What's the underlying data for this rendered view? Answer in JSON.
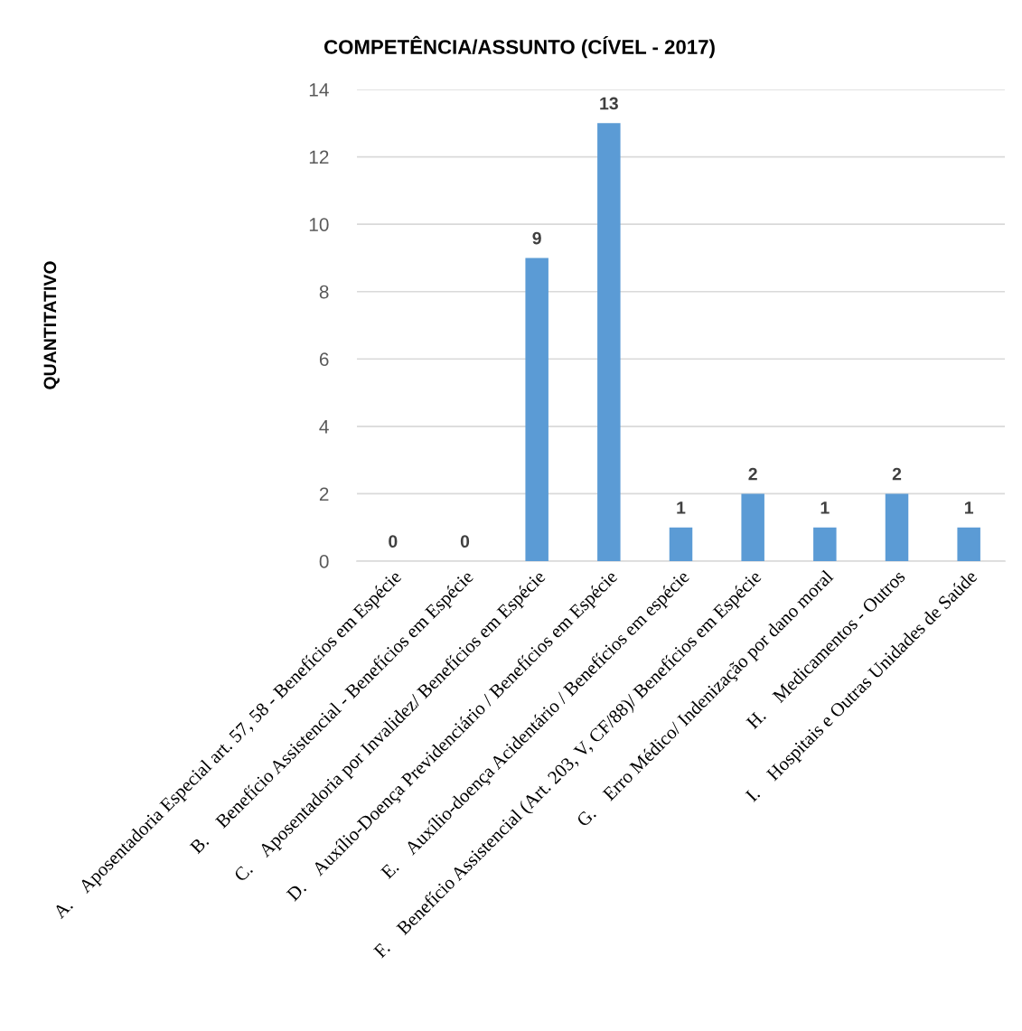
{
  "chart_data": {
    "type": "bar",
    "title": "COMPETÊNCIA/ASSUNTO (CÍVEL - 2017)",
    "ylabel": "QUANTITATIVO",
    "categories": [
      "A.    Aposentadoria Especial art. 57, 58 - Benefícios em Espécie",
      "B.    Benefício Assistencial - Benefícios em Espécie",
      "C.    Aposentadoria por Invalidez/ Benefícios em Espécie",
      "D.    Auxílio-Doença Previdenciário / Benefícios em Espécie",
      "E.    Auxílio-doença Acidentário / Benefícios em espécie",
      "F.    Benefício Assistencial (Art. 203, V, CF/88)/ Benefícios em Espécie",
      "G.    Erro Médico/ Indenização por dano moral",
      "H.    Medicamentos - Outros",
      "I.    Hospitais e Outras Unidades de Saúde"
    ],
    "values": [
      0,
      0,
      9,
      13,
      1,
      2,
      1,
      2,
      1
    ],
    "color": "#5b9bd5",
    "ylim": [
      0,
      14
    ],
    "yticks": [
      0,
      2,
      4,
      6,
      8,
      10,
      12,
      14
    ],
    "grid": "y",
    "data_labels": true
  }
}
